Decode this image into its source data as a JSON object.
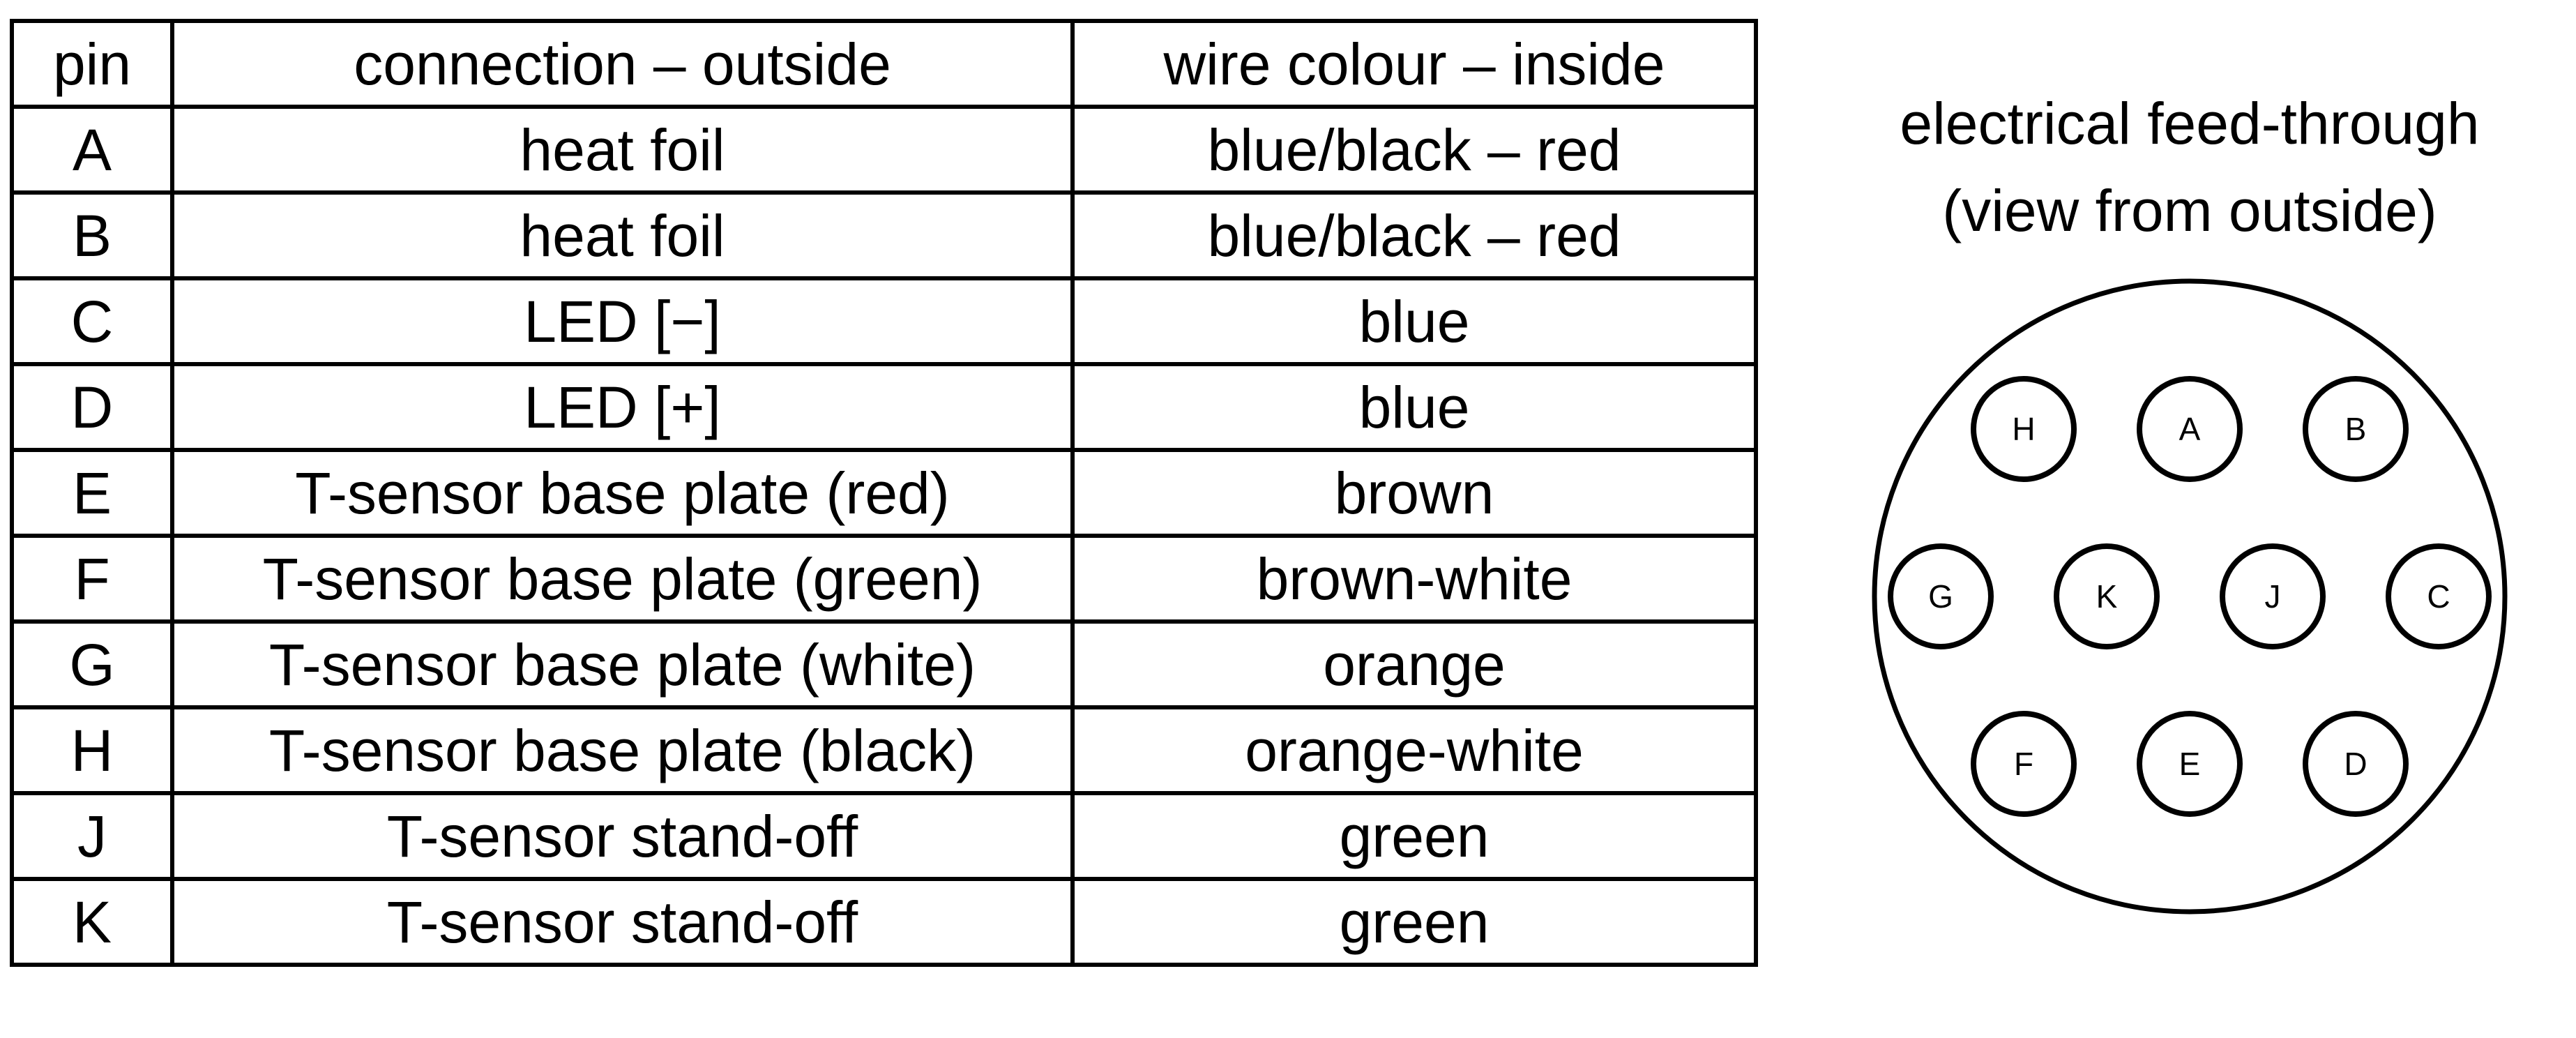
{
  "table": {
    "headers": {
      "pin": "pin",
      "outside": "connection – outside",
      "inside": "wire colour – inside"
    },
    "rows": [
      {
        "pin": "A",
        "outside": "heat foil",
        "inside": "blue/black – red"
      },
      {
        "pin": "B",
        "outside": "heat foil",
        "inside": "blue/black – red"
      },
      {
        "pin": "C",
        "outside": "LED [−]",
        "inside": "blue"
      },
      {
        "pin": "D",
        "outside": "LED [+]",
        "inside": "blue"
      },
      {
        "pin": "E",
        "outside": "T-sensor base plate (red)",
        "inside": "brown"
      },
      {
        "pin": "F",
        "outside": "T-sensor base plate (green)",
        "inside": "brown-white"
      },
      {
        "pin": "G",
        "outside": "T-sensor base plate (white)",
        "inside": "orange"
      },
      {
        "pin": "H",
        "outside": "T-sensor base plate (black)",
        "inside": "orange-white"
      },
      {
        "pin": "J",
        "outside": "T-sensor stand-off",
        "inside": "green"
      },
      {
        "pin": "K",
        "outside": "T-sensor stand-off",
        "inside": "green"
      }
    ]
  },
  "feedthrough": {
    "title_line1": "electrical feed-through",
    "title_line2": "(view from outside)",
    "pin_rows": [
      [
        "H",
        "A",
        "B"
      ],
      [
        "G",
        "K",
        "J",
        "C"
      ],
      [
        "F",
        "E",
        "D"
      ]
    ]
  }
}
